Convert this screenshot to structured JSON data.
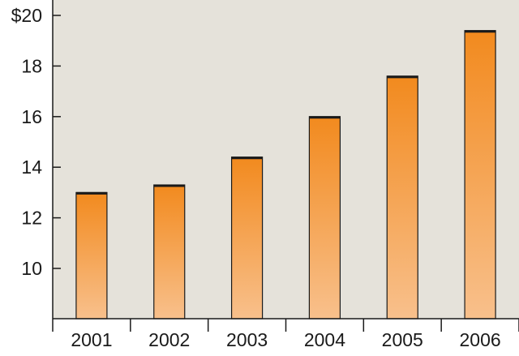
{
  "chart_data": {
    "type": "bar",
    "title": "",
    "xlabel": "",
    "ylabel": "",
    "categories": [
      "2001",
      "2002",
      "2003",
      "2004",
      "2005",
      "2006"
    ],
    "values": [
      13.0,
      13.3,
      14.4,
      16.0,
      17.6,
      19.4
    ],
    "ylim": [
      8,
      20
    ],
    "y_ticks": [
      {
        "value": 10,
        "label": "10"
      },
      {
        "value": 12,
        "label": "12"
      },
      {
        "value": 14,
        "label": "14"
      },
      {
        "value": 16,
        "label": "16"
      },
      {
        "value": 18,
        "label": "18"
      },
      {
        "value": 20,
        "label": "$20"
      }
    ],
    "grid": false,
    "colors": {
      "plot_background": "#e5e2da",
      "bar_top": "#f28a1e",
      "bar_bottom": "#f8c08c",
      "bar_outline": "#1a1a1a",
      "axis": "#1a1a1a"
    }
  }
}
